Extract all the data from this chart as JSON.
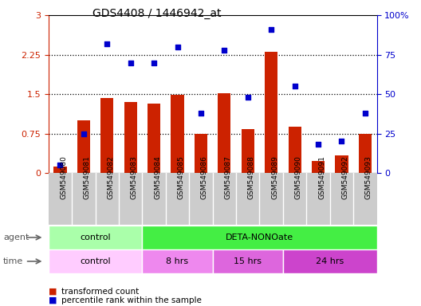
{
  "title": "GDS4408 / 1446942_at",
  "samples": [
    "GSM549080",
    "GSM549081",
    "GSM549082",
    "GSM549083",
    "GSM549084",
    "GSM549085",
    "GSM549086",
    "GSM549087",
    "GSM549088",
    "GSM549089",
    "GSM549090",
    "GSM549091",
    "GSM549092",
    "GSM549093"
  ],
  "bar_values": [
    0.12,
    1.0,
    1.43,
    1.35,
    1.32,
    1.48,
    0.75,
    1.52,
    0.83,
    2.3,
    0.88,
    0.22,
    0.33,
    0.75
  ],
  "dot_values": [
    5,
    25,
    82,
    70,
    70,
    80,
    38,
    78,
    48,
    91,
    55,
    18,
    20,
    38
  ],
  "ylim_left": [
    0,
    3
  ],
  "ylim_right": [
    0,
    100
  ],
  "yticks_left": [
    0,
    0.75,
    1.5,
    2.25,
    3
  ],
  "yticks_right": [
    0,
    25,
    50,
    75,
    100
  ],
  "ytick_labels_left": [
    "0",
    "0.75",
    "1.5",
    "2.25",
    "3"
  ],
  "ytick_labels_right": [
    "0",
    "25",
    "50",
    "75",
    "100%"
  ],
  "bar_color": "#cc2200",
  "dot_color": "#0000cc",
  "agent_labels": [
    {
      "text": "control",
      "start": 0,
      "end": 4,
      "color": "#aaffaa"
    },
    {
      "text": "DETA-NONOate",
      "start": 4,
      "end": 14,
      "color": "#44ee44"
    }
  ],
  "time_labels": [
    {
      "text": "control",
      "start": 0,
      "end": 4,
      "color": "#ffccff"
    },
    {
      "text": "8 hrs",
      "start": 4,
      "end": 7,
      "color": "#ee88ee"
    },
    {
      "text": "15 hrs",
      "start": 7,
      "end": 10,
      "color": "#dd66dd"
    },
    {
      "text": "24 hrs",
      "start": 10,
      "end": 14,
      "color": "#cc44cc"
    }
  ],
  "legend_bar_label": "transformed count",
  "legend_dot_label": "percentile rank within the sample",
  "hlines": [
    0.75,
    1.5,
    2.25
  ],
  "xlabel_bg": "#cccccc"
}
